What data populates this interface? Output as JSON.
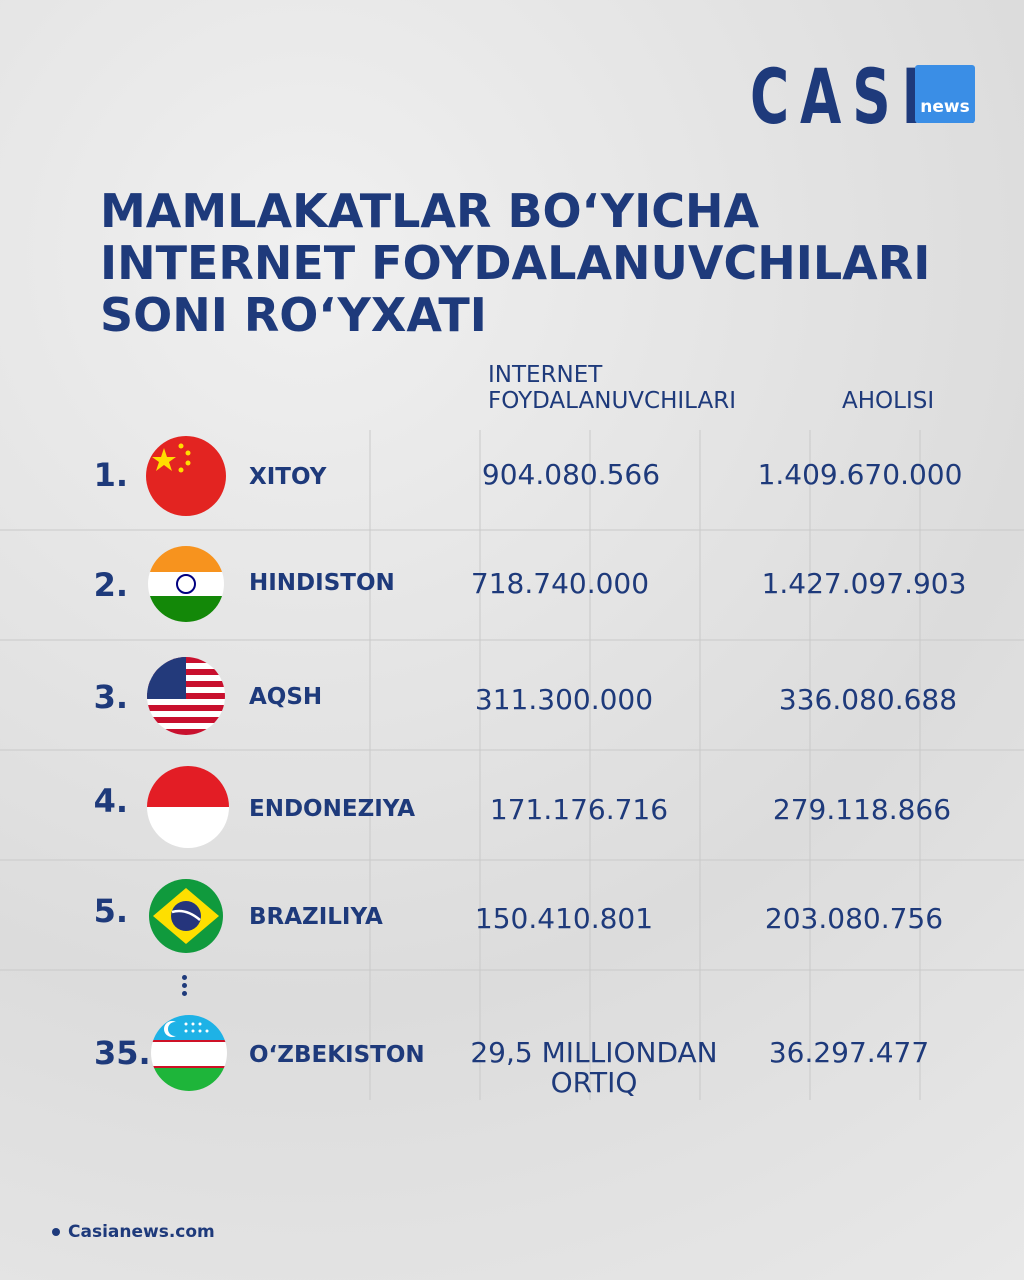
{
  "logo": {
    "brand": "CASIA",
    "tag": "news"
  },
  "title": [
    "MAMLAKATLAR BO‘YICHA",
    "INTERNET FOYDALANUVCHILARI",
    "SONI RO‘YXATI"
  ],
  "table": {
    "headers": [
      "INTERNET FOYDALANUVCHILARI",
      "AHOLISI"
    ],
    "rows": [
      {
        "rank": "1.",
        "country": "XITOY",
        "internet_users": "904.080.566",
        "population": "1.409.670.000"
      },
      {
        "rank": "2.",
        "country": "HINDISTON",
        "internet_users": "718.740.000",
        "population": "1.427.097.903"
      },
      {
        "rank": "3.",
        "country": "AQSH",
        "internet_users": "311.300.000",
        "population": "336.080.688"
      },
      {
        "rank": "4.",
        "country": "ENDONEZIYA",
        "internet_users": "171.176.716",
        "population": "279.118.866"
      },
      {
        "rank": "5.",
        "country": "BRAZILIYA",
        "internet_users": "150.410.801",
        "population": "203.080.756"
      },
      {
        "rank": "35.",
        "country": "O‘ZBEKISTON",
        "internet_users": "29,5 MILLIONDAN ORTIQ",
        "population": "36.297.477"
      }
    ]
  },
  "footer": "Casianews.com"
}
